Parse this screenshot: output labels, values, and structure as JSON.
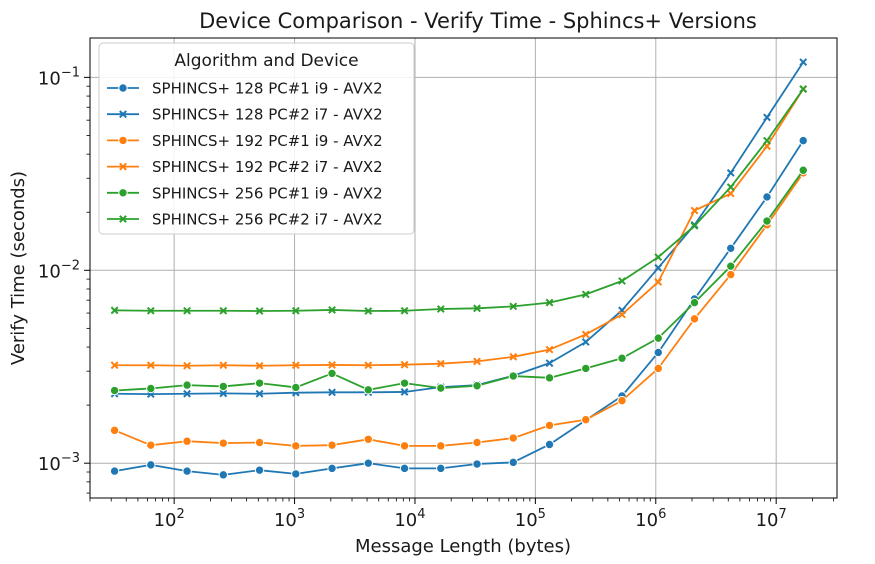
{
  "chart_data": {
    "type": "line",
    "title": "Device Comparison - Verify Time - Sphincs+ Versions",
    "xlabel": "Message Length (bytes)",
    "ylabel": "Verify Time (seconds)",
    "xscale": "log",
    "yscale": "log",
    "xlim": [
      20,
      32000000
    ],
    "ylim": [
      0.00066,
      0.16
    ],
    "grid": true,
    "legend": {
      "title": "Algorithm and Device",
      "placement": "top-left"
    },
    "x_ticks": [
      {
        "value": 100,
        "base": "10",
        "exp": "2"
      },
      {
        "value": 1000,
        "base": "10",
        "exp": "3"
      },
      {
        "value": 10000,
        "base": "10",
        "exp": "4"
      },
      {
        "value": 100000,
        "base": "10",
        "exp": "5"
      },
      {
        "value": 1000000,
        "base": "10",
        "exp": "6"
      },
      {
        "value": 10000000,
        "base": "10",
        "exp": "7"
      }
    ],
    "y_ticks": [
      {
        "value": 0.001,
        "base": "10",
        "exp": "−3"
      },
      {
        "value": 0.01,
        "base": "10",
        "exp": "−2"
      },
      {
        "value": 0.1,
        "base": "10",
        "exp": "−1"
      }
    ],
    "x": [
      32,
      64,
      128,
      256,
      512,
      1024,
      2048,
      4096,
      8192,
      16384,
      32768,
      65536,
      131072,
      262144,
      524288,
      1048576,
      2097152,
      4194304,
      8388608,
      16777216
    ],
    "series": [
      {
        "name": "SPHINCS+ 128 PC#1 i9 - AVX2",
        "color": "#1f77b4",
        "marker": "circle",
        "values": [
          0.00091,
          0.00098,
          0.00091,
          0.00087,
          0.00092,
          0.00088,
          0.00094,
          0.001,
          0.00094,
          0.00094,
          0.00099,
          0.00101,
          0.00125,
          0.00167,
          0.00223,
          0.00375,
          0.0071,
          0.013,
          0.024,
          0.047
        ]
      },
      {
        "name": "SPHINCS+ 128 PC#2 i7 - AVX2",
        "color": "#1f77b4",
        "marker": "x",
        "values": [
          0.00229,
          0.00228,
          0.00229,
          0.0023,
          0.00229,
          0.00232,
          0.00233,
          0.00233,
          0.00234,
          0.00248,
          0.00254,
          0.00284,
          0.0033,
          0.00425,
          0.0062,
          0.0103,
          0.0172,
          0.032,
          0.062,
          0.12
        ]
      },
      {
        "name": "SPHINCS+ 192 PC#1 i9 - AVX2",
        "color": "#ff7f0e",
        "marker": "circle",
        "values": [
          0.00148,
          0.00124,
          0.0013,
          0.00127,
          0.00128,
          0.00123,
          0.00124,
          0.00133,
          0.00123,
          0.00123,
          0.00128,
          0.00135,
          0.00157,
          0.00168,
          0.00211,
          0.0031,
          0.0056,
          0.0095,
          0.0172,
          0.032
        ]
      },
      {
        "name": "SPHINCS+ 192 PC#2 i7 - AVX2",
        "color": "#ff7f0e",
        "marker": "x",
        "values": [
          0.00322,
          0.00322,
          0.0032,
          0.00322,
          0.0032,
          0.00322,
          0.00323,
          0.00322,
          0.00324,
          0.00328,
          0.00337,
          0.00356,
          0.00388,
          0.00465,
          0.0059,
          0.0087,
          0.0204,
          0.025,
          0.044,
          0.087
        ]
      },
      {
        "name": "SPHINCS+ 256 PC#1 i9 - AVX2",
        "color": "#2ca02c",
        "marker": "circle",
        "values": [
          0.00238,
          0.00244,
          0.00254,
          0.0025,
          0.0026,
          0.00247,
          0.00292,
          0.0024,
          0.0026,
          0.00245,
          0.00252,
          0.00283,
          0.00277,
          0.0031,
          0.0035,
          0.00445,
          0.0068,
          0.0105,
          0.018,
          0.033
        ]
      },
      {
        "name": "SPHINCS+ 256 PC#2 i7 - AVX2",
        "color": "#2ca02c",
        "marker": "x",
        "values": [
          0.0062,
          0.00617,
          0.00617,
          0.00617,
          0.00615,
          0.00617,
          0.00623,
          0.00615,
          0.00617,
          0.0063,
          0.00635,
          0.0065,
          0.0068,
          0.0075,
          0.0088,
          0.0117,
          0.017,
          0.027,
          0.047,
          0.087
        ]
      }
    ]
  }
}
